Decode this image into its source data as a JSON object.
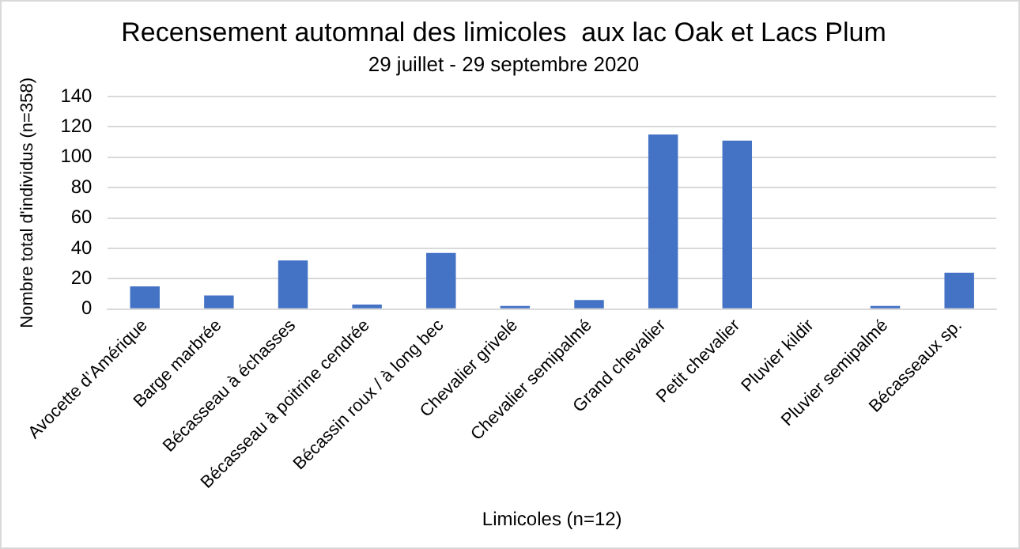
{
  "chart_data": {
    "type": "bar",
    "title": "Recensement automnal des limicoles  aux lac Oak et Lacs Plum",
    "subtitle": "29 juillet - 29 septembre 2020",
    "xlabel": "Limicoles (n=12)",
    "ylabel": "Nombre total d'individus (n=358)",
    "categories": [
      "Avocette d’Amérique",
      "Barge marbrée",
      "Bécasseau à échasses",
      "Bécasseau à poitrine cendrée",
      "Bécassin roux / à long bec",
      "Chevalier grivelé",
      "Chevalier semipalmé",
      "Grand chevalier",
      "Petit chevalier",
      "Pluvier kildir",
      "Pluvier semipalmé",
      "Bécasseaux sp."
    ],
    "values": [
      15,
      9,
      32,
      3,
      37,
      2,
      6,
      115,
      111,
      0,
      2,
      24
    ],
    "color": "#4472c4",
    "ylim": [
      0,
      140
    ],
    "yticks": [
      0,
      20,
      40,
      60,
      80,
      100,
      120,
      140
    ],
    "grid": "y",
    "legend": false
  }
}
